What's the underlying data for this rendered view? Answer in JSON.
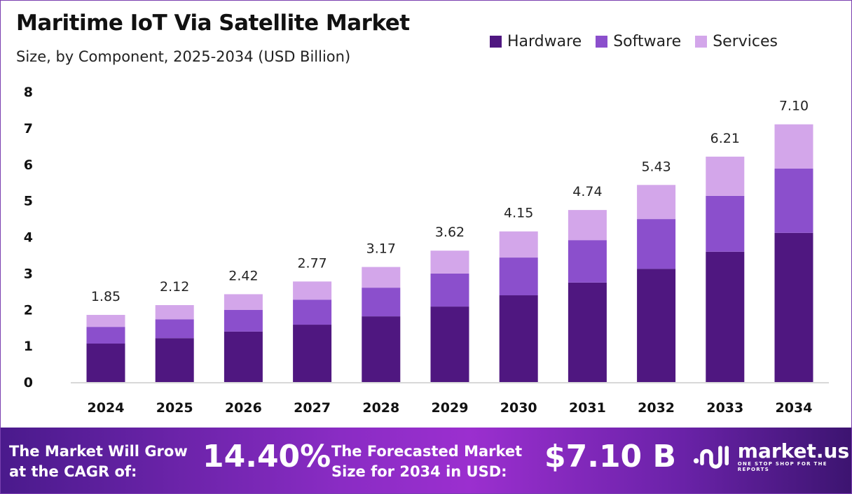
{
  "chart_data": {
    "type": "bar",
    "stacked": true,
    "title": "Maritime IoT Via Satellite Market",
    "subtitle": "Size, by Component, 2025-2034 (USD Billion)",
    "categories": [
      "2024",
      "2025",
      "2026",
      "2027",
      "2028",
      "2029",
      "2030",
      "2031",
      "2032",
      "2033",
      "2034"
    ],
    "series": [
      {
        "name": "Hardware",
        "color": "#4f1780",
        "values": [
          1.06,
          1.21,
          1.39,
          1.58,
          1.81,
          2.08,
          2.39,
          2.74,
          3.12,
          3.59,
          4.11
        ]
      },
      {
        "name": "Software",
        "color": "#8b4fcc",
        "values": [
          0.46,
          0.52,
          0.6,
          0.69,
          0.79,
          0.91,
          1.04,
          1.17,
          1.37,
          1.54,
          1.77
        ]
      },
      {
        "name": "Services",
        "color": "#d3a6ea",
        "values": [
          0.33,
          0.39,
          0.43,
          0.5,
          0.57,
          0.63,
          0.72,
          0.83,
          0.94,
          1.08,
          1.22
        ]
      }
    ],
    "totals": [
      "1.85",
      "2.12",
      "2.42",
      "2.77",
      "3.17",
      "3.62",
      "4.15",
      "4.74",
      "5.43",
      "6.21",
      "7.10"
    ],
    "yticks": [
      "0",
      "1",
      "2",
      "3",
      "4",
      "5",
      "6",
      "7",
      "8"
    ],
    "ylim": [
      0,
      8
    ],
    "grid": false,
    "legend": "top-right"
  },
  "footer": {
    "cagr_label": "The Market Will Grow at the CAGR of:",
    "cagr_value": "14.40%",
    "forecast_label": "The Forecasted Market Size for 2034 in USD:",
    "forecast_value": "$7.10 B",
    "logo_name": "market.us",
    "logo_tagline": "ONE STOP SHOP FOR THE REPORTS"
  }
}
